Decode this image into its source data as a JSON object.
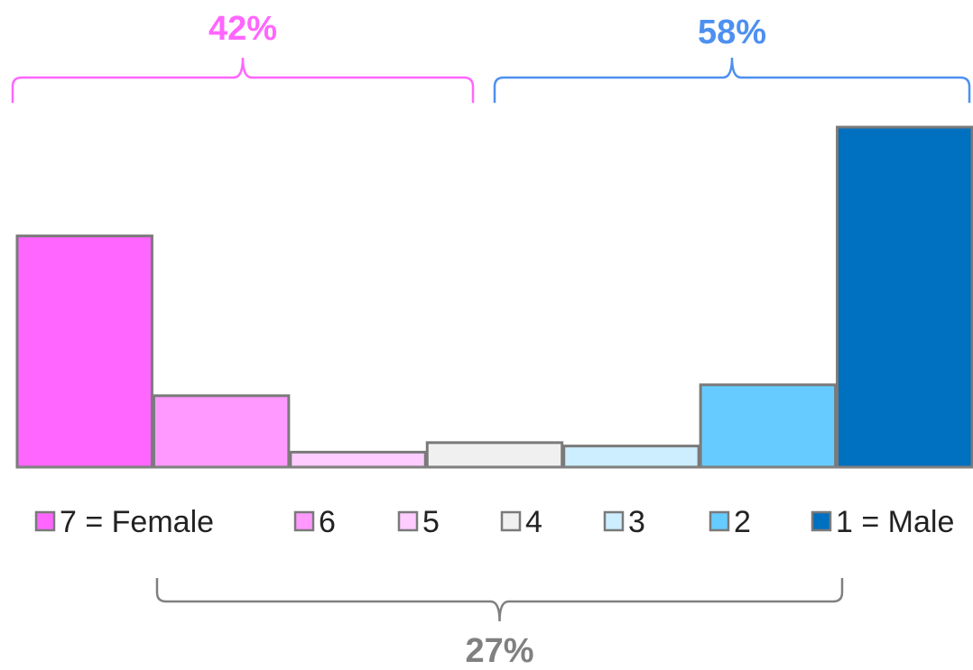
{
  "chart_data": {
    "type": "bar",
    "categories": [
      "7 = Female",
      "6",
      "5",
      "4",
      "3",
      "2",
      "1 = Male"
    ],
    "values": [
      34,
      10.5,
      2.2,
      3.6,
      3.1,
      12.1,
      50
    ],
    "ylim": [
      0,
      50
    ],
    "grid": false,
    "legend_position": "bottom",
    "colors": [
      "#ff66ff",
      "#ff99ff",
      "#ffccff",
      "#f0f0f0",
      "#cceeff",
      "#66ccff",
      "#0070c0"
    ],
    "brackets": [
      {
        "label": "42%",
        "color": "#ff66ff",
        "from": 0,
        "to": 2
      },
      {
        "label": "58%",
        "color": "#4d90f0",
        "from": 4,
        "to": 6
      },
      {
        "label": "27%",
        "color": "#808080",
        "from": 1,
        "to": 5
      }
    ]
  }
}
